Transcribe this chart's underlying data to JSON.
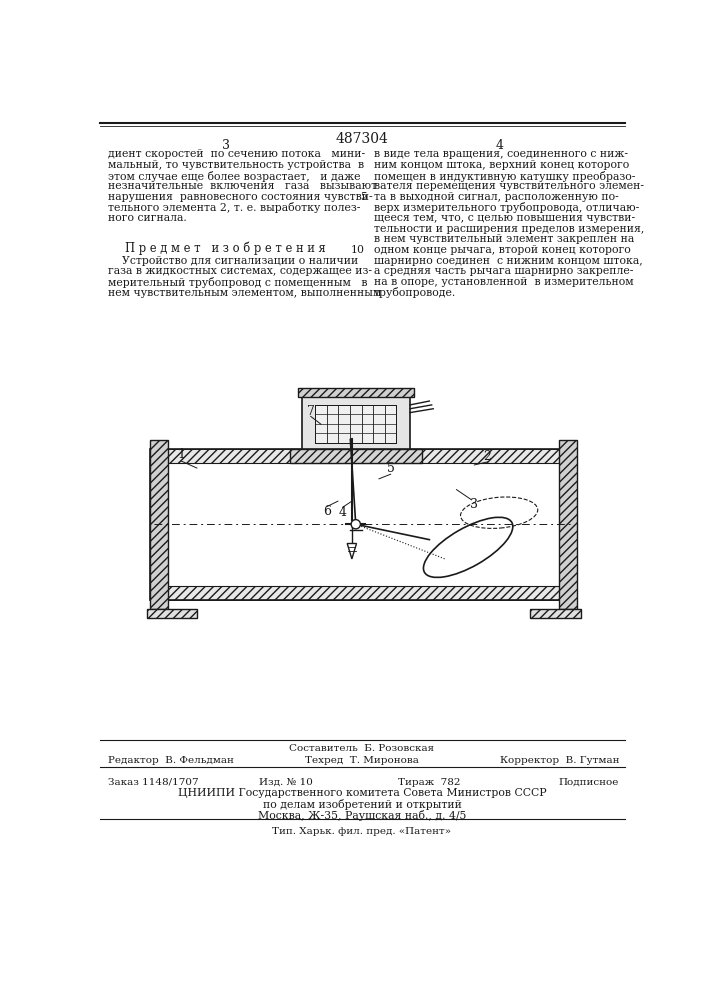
{
  "patent_number": "487304",
  "page_left": "3",
  "page_right": "4",
  "background_color": "#ffffff",
  "text_color": "#1a1a1a",
  "left_column_text": [
    "диент скоростей  по сечению потока   мини-",
    "мальный, то чувствительность устройства  в",
    "этом случае еще более возрастает,   и даже",
    "незначительные  включения   газа   вызывают",
    "нарушения  равновесного состояния чувстви-",
    "тельного элемента 2, т. е. выработку полез-",
    "ного сигнала."
  ],
  "predmet_title": "П р е д м е т   и з о б р е т е н и я",
  "predmet_text": [
    "    Устройство для сигнализации о наличии",
    "газа в жидкостных системах, содержащее из-",
    "мерительный трубопровод с помещенным   в",
    "нем чувствительным элементом, выполненным"
  ],
  "right_column_text": [
    "в виде тела вращения, соединенного с ниж-",
    "ним концом штока, верхний конец которого",
    "помещен в индуктивную катушку преобразо-",
    "вателя перемещения чувствительного элемен-",
    "та в выходной сигнал, расположенную по-",
    "верх измерительного трубопровода, отличаю-",
    "щееся тем, что, с целью повышения чувстви-",
    "тельности и расширения пределов измерения,",
    "в нем чувствительный элемент закреплен на",
    "одном конце рычага, второй конец которого",
    "шарнирно соединен  с нижним концом штока,",
    "а средняя часть рычага шарнирно закрепле-",
    "на в опоре, установленной  в измерительном",
    "трубопроводе."
  ],
  "right_line_number_5": "5",
  "right_line_number_10": "10",
  "footer_sestavitel": "Составитель  Б. Розовская",
  "footer_redaktor": "Редактор  В. Фельдман",
  "footer_tehred": "Техред  Т. Миронова",
  "footer_korrektor": "Корректор  В. Гутман",
  "footer_zakaz": "Заказ 1148/1707",
  "footer_izd": "Изд. № 10",
  "footer_tirazh": "Тираж  782",
  "footer_podpisnoe": "Подписное",
  "footer_center1": "ЦНИИПИ Государственного комитета Совета Министров СССР",
  "footer_center2": "по делам изобретений и открытий",
  "footer_center3": "Москва, Ж-35, Раушская наб., д. 4/5",
  "footer_bottom": "Тип. Харьк. фил. пред. «Патент»"
}
